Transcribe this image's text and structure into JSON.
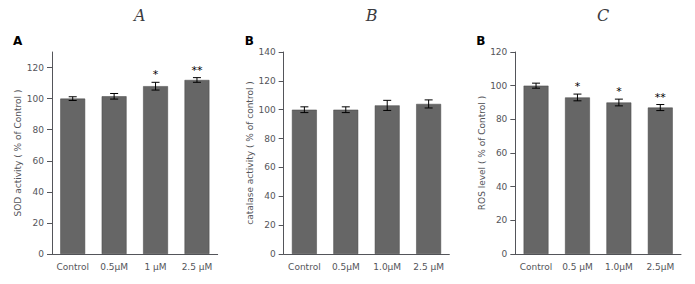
{
  "chart_data": [
    {
      "type": "bar",
      "title": "A",
      "subtitle": "A",
      "categories": [
        "Control",
        "0.5μM",
        "1 μM",
        "2.5 μM"
      ],
      "values": [
        100,
        101.5,
        108,
        112
      ],
      "errors": [
        1.2,
        1.8,
        2.5,
        1.5
      ],
      "annotations": [
        null,
        null,
        "*",
        "**"
      ],
      "ylabel": "SOD activity ( % of Control )",
      "color": "#666666",
      "ylim": [
        0,
        130
      ],
      "yticks": [
        0,
        20,
        40,
        60,
        80,
        100,
        120
      ],
      "grid": false
    },
    {
      "type": "bar",
      "title": "B",
      "subtitle": "B",
      "categories": [
        "Control",
        "0.5μM",
        "1.0μM",
        "2.5 μM"
      ],
      "values": [
        100,
        100,
        103,
        104
      ],
      "errors": [
        2.0,
        2.0,
        3.5,
        2.8
      ],
      "ylabel": "catalase activity ( % of control )",
      "color": "#666666",
      "ylim": [
        0,
        140
      ],
      "yticks": [
        0,
        20,
        40,
        60,
        80,
        100,
        120,
        140
      ],
      "grid": false
    },
    {
      "type": "bar",
      "title": "C",
      "subtitle": "B",
      "categories": [
        "Control",
        "0.5 μM",
        "1.0μM",
        "2.5μM"
      ],
      "values": [
        100,
        93,
        90,
        87
      ],
      "errors": [
        1.5,
        2.0,
        2.0,
        1.8
      ],
      "annotations": [
        null,
        "*",
        "*",
        "**"
      ],
      "ylabel": "ROS level ( % of Control )",
      "color": "#666666",
      "ylim": [
        0,
        120
      ],
      "yticks": [
        0,
        20,
        40,
        60,
        80,
        100,
        120
      ],
      "grid": false
    }
  ]
}
